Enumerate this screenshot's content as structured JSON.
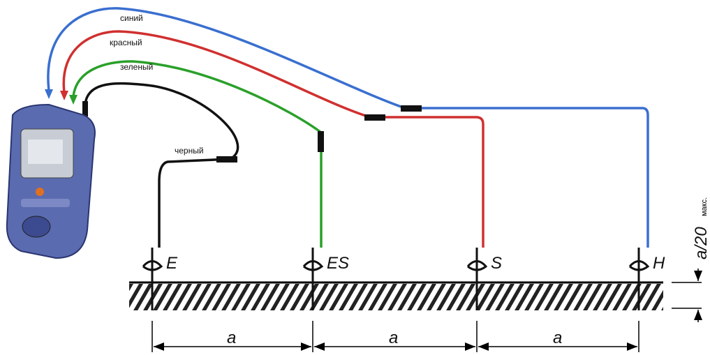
{
  "wires": [
    {
      "label": "синий"
    },
    {
      "label": "красный"
    },
    {
      "label": "зеленый"
    },
    {
      "label": "черный"
    }
  ],
  "electrodes": [
    {
      "label": "E"
    },
    {
      "label": "ES"
    },
    {
      "label": "S"
    },
    {
      "label": "H"
    }
  ],
  "distances": [
    {
      "label": "a"
    },
    {
      "label": "a"
    },
    {
      "label": "a"
    }
  ],
  "depth": {
    "label": "a/20",
    "note": "макс."
  }
}
